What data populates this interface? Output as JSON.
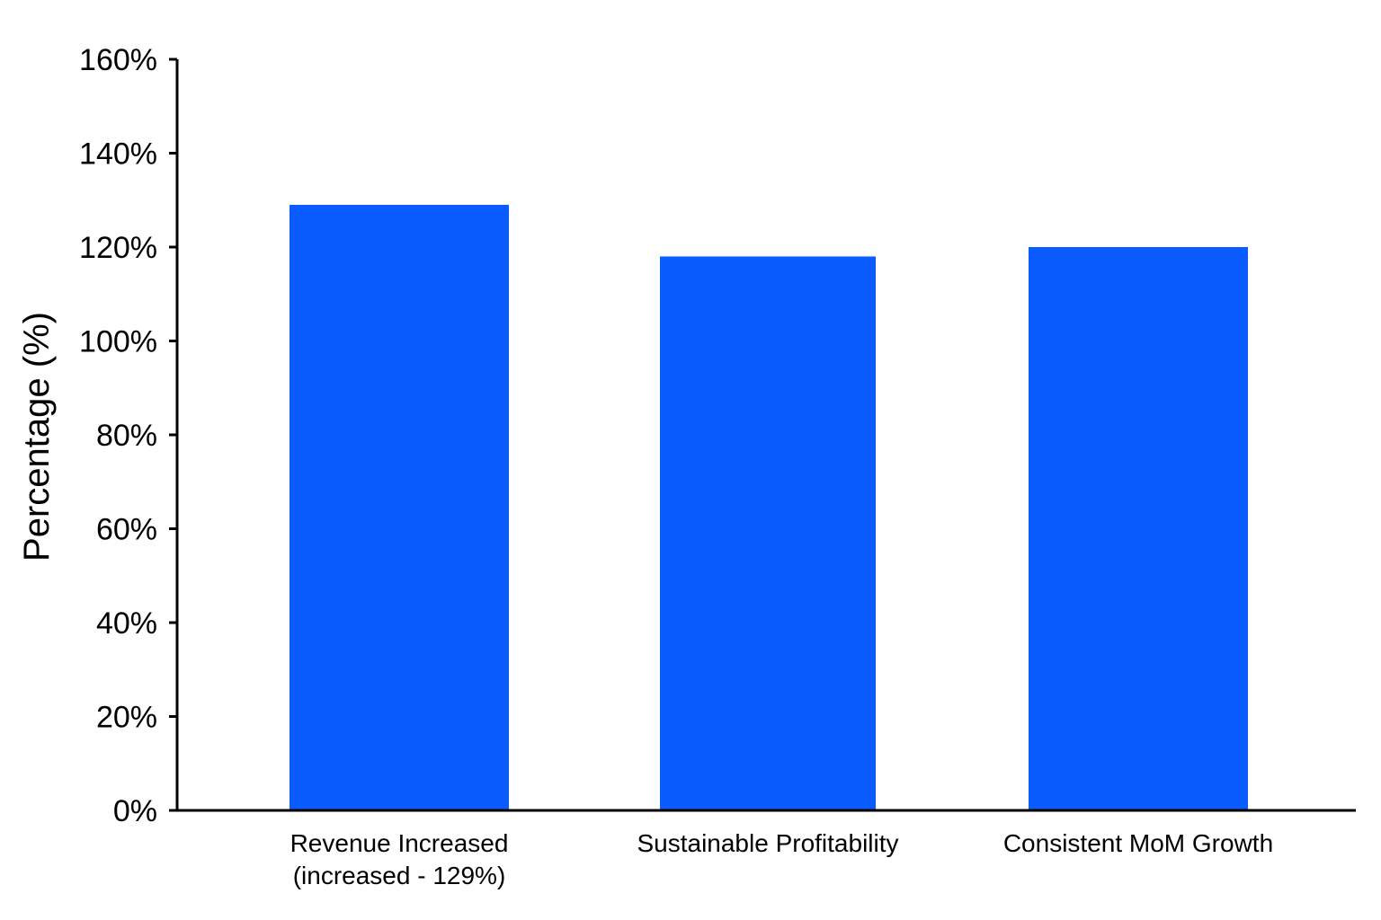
{
  "chart_data": {
    "type": "bar",
    "title": "",
    "xlabel": "",
    "ylabel": "Percentage (%)",
    "ylim": [
      0,
      160
    ],
    "y_ticks": [
      0,
      20,
      40,
      60,
      80,
      100,
      120,
      140,
      160
    ],
    "y_tick_labels": [
      "0%",
      "20%",
      "40%",
      "60%",
      "80%",
      "100%",
      "120%",
      "140%",
      "160%"
    ],
    "categories": [
      [
        "Revenue Increased",
        "(increased - 129%)"
      ],
      [
        "Sustainable Profitability"
      ],
      [
        "Consistent MoM Growth"
      ]
    ],
    "values": [
      129,
      118,
      120
    ],
    "bar_color": "#0a5cff",
    "grid": false,
    "legend": "none"
  }
}
